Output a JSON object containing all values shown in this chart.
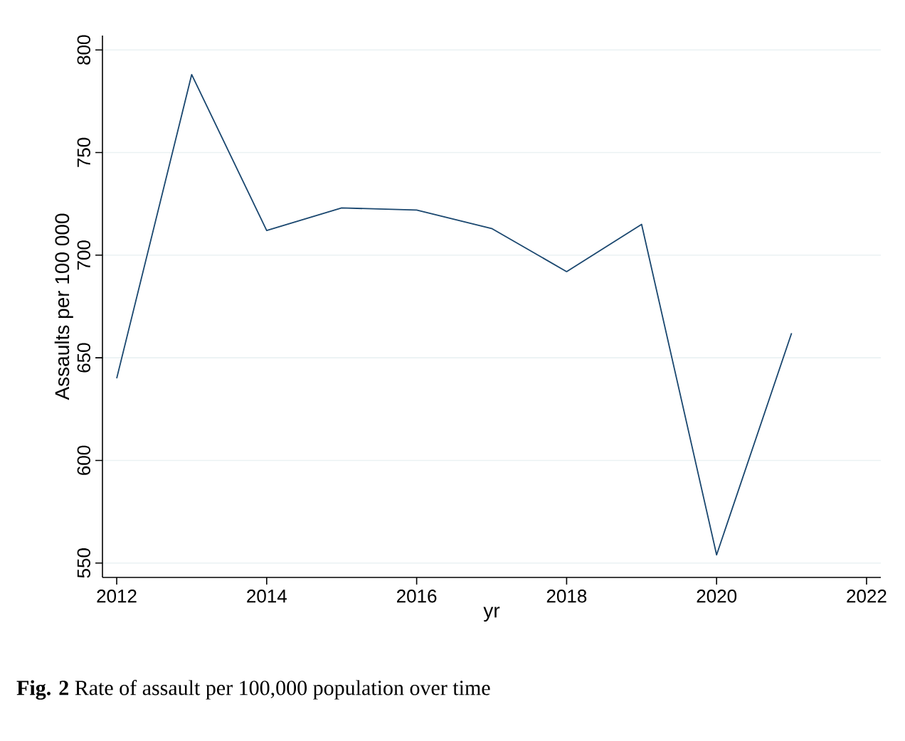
{
  "chart_data": {
    "type": "line",
    "xlabel": "yr",
    "ylabel": "Assaults per 100 000",
    "x": [
      2012,
      2013,
      2014,
      2015,
      2016,
      2017,
      2018,
      2019,
      2020,
      2021
    ],
    "series": [
      {
        "color": "#1a476f",
        "values": [
          640,
          788,
          712,
          723,
          722,
          713,
          692,
          715,
          554,
          662
        ]
      }
    ],
    "xlim": [
      2011.81,
      2022.19
    ],
    "ylim": [
      543,
      807
    ],
    "xticks": [
      2012,
      2014,
      2016,
      2018,
      2020,
      2022
    ],
    "yticks": [
      550,
      600,
      650,
      700,
      750,
      800
    ],
    "grid": "y",
    "marker": "none",
    "line_style": "solid",
    "annotations": [
      "**Fig. 2**  Rate of assault per 100,000 population over time"
    ]
  }
}
